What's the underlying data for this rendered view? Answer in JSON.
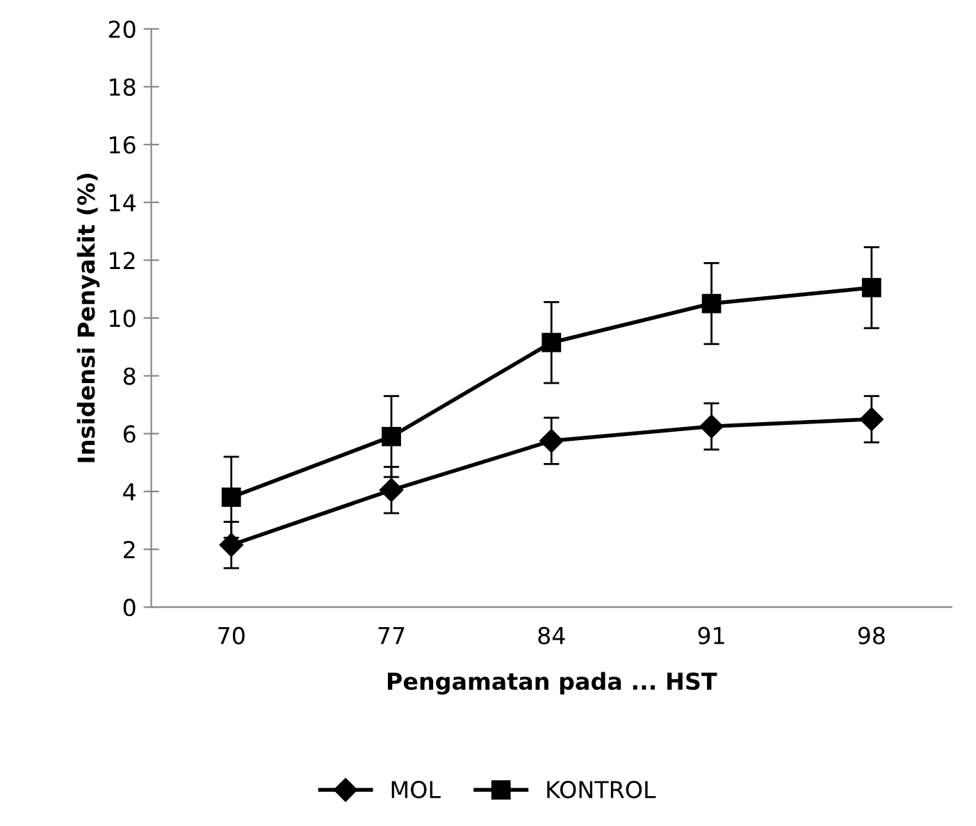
{
  "chart_data": {
    "type": "line",
    "xlabel": "Pengamatan pada ... HST",
    "ylabel": "Insidensi Penyakit (%)",
    "categories": [
      "70",
      "77",
      "84",
      "91",
      "98"
    ],
    "series": [
      {
        "name": "MOL",
        "color": "#000000",
        "marker": "diamond",
        "values": [
          2.15,
          4.05,
          5.75,
          6.25,
          6.5
        ],
        "errors": [
          0.8,
          0.8,
          0.8,
          0.8,
          0.8
        ]
      },
      {
        "name": "KONTROL",
        "color": "#000000",
        "marker": "square",
        "values": [
          3.8,
          5.9,
          9.15,
          10.5,
          11.05
        ],
        "errors": [
          1.4,
          1.4,
          1.4,
          1.4,
          1.4
        ]
      }
    ],
    "ylim": [
      0,
      20
    ],
    "yticks": [
      0,
      2,
      4,
      6,
      8,
      10,
      12,
      14,
      16,
      18,
      20
    ],
    "grid": false,
    "legend": "bottom",
    "line_style": "solid"
  }
}
